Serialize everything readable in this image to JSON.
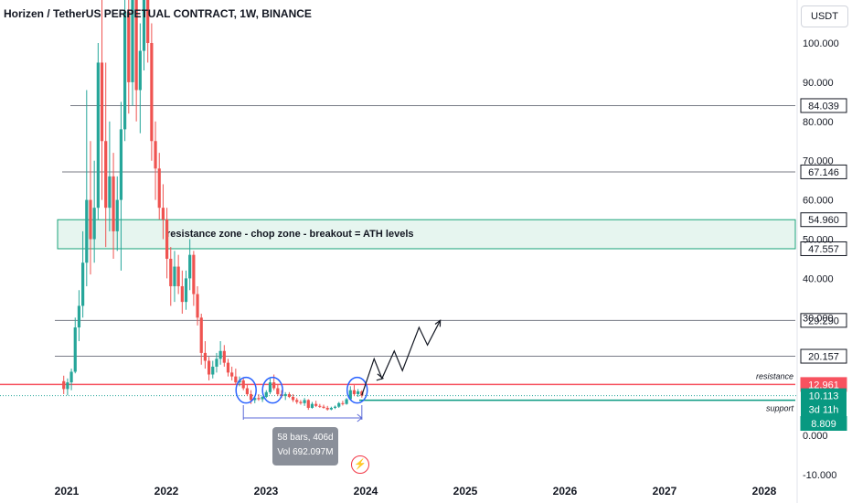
{
  "header": {
    "title": "Horizen / TetherUS PERPETUAL CONTRACT, 1W, BINANCE",
    "currency_button": "USDT"
  },
  "annotation": {
    "zone_text": "resistance zone - chop zone - breakout = ATH levels",
    "resistance_label": "resistance",
    "support_label": "support"
  },
  "measure": {
    "line1": "58 bars, 406d",
    "line2": "Vol 692.097M"
  },
  "colors": {
    "up": "#26a69a",
    "down": "#ef5350",
    "resistance": "#f7525f",
    "support": "#089981",
    "zone": "#1aa37a",
    "level": "#787b86",
    "path": "#131722",
    "circle": "#2962ff"
  },
  "chart_data": {
    "type": "candlestick",
    "symbol": "Horizen / TetherUS PERPETUAL CONTRACT",
    "interval": "1W",
    "exchange": "BINANCE",
    "x_ticks": [
      "2021",
      "2022",
      "2023",
      "2024",
      "2025",
      "2026",
      "2027",
      "2028"
    ],
    "y_ticks": [
      "100.000",
      "90.000",
      "80.000",
      "70.000",
      "60.000",
      "50.000",
      "40.000",
      "30.000",
      "0.000",
      "-10.000"
    ],
    "ylim": [
      -10,
      115
    ],
    "levels": [
      {
        "value": 84.039,
        "label": "84.039",
        "kind": "horizontal"
      },
      {
        "value": 67.146,
        "label": "67.146",
        "kind": "horizontal"
      },
      {
        "value": 54.96,
        "label": "54.960",
        "kind": "zone-top"
      },
      {
        "value": 47.557,
        "label": "47.557",
        "kind": "zone-bottom"
      },
      {
        "value": 29.29,
        "label": "29.290",
        "kind": "horizontal"
      },
      {
        "value": 20.157,
        "label": "20.157",
        "kind": "horizontal"
      },
      {
        "value": 12.961,
        "label": "12.961",
        "kind": "resistance"
      },
      {
        "value": 8.809,
        "label": "8.809",
        "kind": "support"
      }
    ],
    "last_price": {
      "value": 10.113,
      "label": "10.113",
      "countdown": "3d 11h"
    },
    "top_level": 113.5,
    "projection_path": [
      [
        "2023-12-18",
        10.2
      ],
      [
        "2024-02-01",
        19.5
      ],
      [
        "2024-03-01",
        14.5
      ],
      [
        "2024-04-15",
        21.5
      ],
      [
        "2024-05-15",
        16.5
      ],
      [
        "2024-07-15",
        27.5
      ],
      [
        "2024-08-15",
        23.0
      ],
      [
        "2024-10-01",
        29.3
      ]
    ],
    "highlight_circles": [
      "2022-10-20",
      "2023-01-25",
      "2023-12-01"
    ],
    "candles": [
      {
        "t": "2020-12-21",
        "o": 13.8,
        "h": 15.2,
        "l": 10.5,
        "c": 11.8
      },
      {
        "t": "2021-01-04",
        "o": 11.8,
        "h": 14.5,
        "l": 10.2,
        "c": 13.5
      },
      {
        "t": "2021-01-18",
        "o": 13.5,
        "h": 17.0,
        "l": 11.5,
        "c": 16.2
      },
      {
        "t": "2021-02-01",
        "o": 16.2,
        "h": 30.0,
        "l": 15.8,
        "c": 27.5
      },
      {
        "t": "2021-02-15",
        "o": 27.5,
        "h": 37.0,
        "l": 24.0,
        "c": 33.0
      },
      {
        "t": "2021-03-01",
        "o": 33.0,
        "h": 52.0,
        "l": 30.0,
        "c": 44.0
      },
      {
        "t": "2021-03-15",
        "o": 44.0,
        "h": 88.0,
        "l": 38.0,
        "c": 60.0
      },
      {
        "t": "2021-03-29",
        "o": 60.0,
        "h": 75.0,
        "l": 41.0,
        "c": 50.0
      },
      {
        "t": "2021-04-12",
        "o": 50.0,
        "h": 70.0,
        "l": 44.0,
        "c": 58.0
      },
      {
        "t": "2021-04-26",
        "o": 58.0,
        "h": 100.0,
        "l": 55.0,
        "c": 95.0
      },
      {
        "t": "2021-05-10",
        "o": 95.0,
        "h": 120.0,
        "l": 60.0,
        "c": 75.0
      },
      {
        "t": "2021-05-24",
        "o": 75.0,
        "h": 95.0,
        "l": 48.0,
        "c": 58.0
      },
      {
        "t": "2021-06-07",
        "o": 58.0,
        "h": 80.0,
        "l": 52.0,
        "c": 66.0
      },
      {
        "t": "2021-06-21",
        "o": 66.0,
        "h": 72.0,
        "l": 45.0,
        "c": 52.0
      },
      {
        "t": "2021-07-05",
        "o": 52.0,
        "h": 66.0,
        "l": 47.0,
        "c": 60.0
      },
      {
        "t": "2021-07-19",
        "o": 60.0,
        "h": 85.0,
        "l": 42.0,
        "c": 78.0
      },
      {
        "t": "2021-08-02",
        "o": 78.0,
        "h": 120.0,
        "l": 75.0,
        "c": 108.0
      },
      {
        "t": "2021-08-16",
        "o": 108.0,
        "h": 125.0,
        "l": 82.0,
        "c": 90.0
      },
      {
        "t": "2021-08-30",
        "o": 90.0,
        "h": 120.0,
        "l": 84.0,
        "c": 116.0
      },
      {
        "t": "2021-09-13",
        "o": 116.0,
        "h": 125.0,
        "l": 80.0,
        "c": 88.0
      },
      {
        "t": "2021-09-27",
        "o": 88.0,
        "h": 105.0,
        "l": 77.0,
        "c": 98.0
      },
      {
        "t": "2021-10-11",
        "o": 98.0,
        "h": 125.0,
        "l": 93.0,
        "c": 118.0
      },
      {
        "t": "2021-10-25",
        "o": 118.0,
        "h": 125.0,
        "l": 95.0,
        "c": 100.0
      },
      {
        "t": "2021-11-08",
        "o": 100.0,
        "h": 105.0,
        "l": 70.0,
        "c": 75.0
      },
      {
        "t": "2021-11-22",
        "o": 75.0,
        "h": 80.0,
        "l": 60.0,
        "c": 68.0
      },
      {
        "t": "2021-12-06",
        "o": 68.0,
        "h": 72.0,
        "l": 55.0,
        "c": 58.0
      },
      {
        "t": "2021-12-20",
        "o": 58.0,
        "h": 64.0,
        "l": 50.0,
        "c": 55.0
      },
      {
        "t": "2022-01-03",
        "o": 55.0,
        "h": 58.0,
        "l": 40.0,
        "c": 45.0
      },
      {
        "t": "2022-01-17",
        "o": 45.0,
        "h": 48.0,
        "l": 33.0,
        "c": 38.0
      },
      {
        "t": "2022-01-31",
        "o": 38.0,
        "h": 47.0,
        "l": 34.0,
        "c": 43.0
      },
      {
        "t": "2022-02-14",
        "o": 43.0,
        "h": 46.0,
        "l": 36.0,
        "c": 38.0
      },
      {
        "t": "2022-02-28",
        "o": 38.0,
        "h": 42.0,
        "l": 31.0,
        "c": 34.0
      },
      {
        "t": "2022-03-14",
        "o": 34.0,
        "h": 42.0,
        "l": 32.0,
        "c": 40.0
      },
      {
        "t": "2022-03-28",
        "o": 40.0,
        "h": 50.0,
        "l": 37.0,
        "c": 46.0
      },
      {
        "t": "2022-04-11",
        "o": 46.0,
        "h": 47.0,
        "l": 33.0,
        "c": 36.0
      },
      {
        "t": "2022-04-25",
        "o": 36.0,
        "h": 38.0,
        "l": 28.0,
        "c": 30.0
      },
      {
        "t": "2022-05-09",
        "o": 30.0,
        "h": 31.0,
        "l": 18.0,
        "c": 21.0
      },
      {
        "t": "2022-05-23",
        "o": 21.0,
        "h": 24.0,
        "l": 17.0,
        "c": 19.0
      },
      {
        "t": "2022-06-06",
        "o": 19.0,
        "h": 20.0,
        "l": 14.0,
        "c": 15.5
      },
      {
        "t": "2022-06-20",
        "o": 15.5,
        "h": 19.0,
        "l": 14.5,
        "c": 17.5
      },
      {
        "t": "2022-07-04",
        "o": 17.5,
        "h": 21.0,
        "l": 16.0,
        "c": 19.5
      },
      {
        "t": "2022-07-18",
        "o": 19.5,
        "h": 24.0,
        "l": 18.0,
        "c": 21.5
      },
      {
        "t": "2022-08-01",
        "o": 21.5,
        "h": 23.0,
        "l": 17.5,
        "c": 18.5
      },
      {
        "t": "2022-08-15",
        "o": 18.5,
        "h": 19.5,
        "l": 15.0,
        "c": 16.0
      },
      {
        "t": "2022-08-29",
        "o": 16.0,
        "h": 17.5,
        "l": 14.0,
        "c": 15.0
      },
      {
        "t": "2022-09-12",
        "o": 15.0,
        "h": 17.0,
        "l": 13.0,
        "c": 13.5
      },
      {
        "t": "2022-09-26",
        "o": 13.5,
        "h": 15.0,
        "l": 12.5,
        "c": 14.0
      },
      {
        "t": "2022-10-10",
        "o": 14.0,
        "h": 14.5,
        "l": 11.5,
        "c": 12.0
      },
      {
        "t": "2022-10-24",
        "o": 12.0,
        "h": 13.0,
        "l": 10.0,
        "c": 10.5
      },
      {
        "t": "2022-11-07",
        "o": 10.5,
        "h": 11.5,
        "l": 8.0,
        "c": 9.0
      },
      {
        "t": "2022-11-21",
        "o": 9.0,
        "h": 10.0,
        "l": 8.2,
        "c": 9.5
      },
      {
        "t": "2022-12-05",
        "o": 9.5,
        "h": 10.5,
        "l": 8.8,
        "c": 9.2
      },
      {
        "t": "2022-12-19",
        "o": 9.2,
        "h": 10.0,
        "l": 8.5,
        "c": 9.8
      },
      {
        "t": "2023-01-02",
        "o": 9.8,
        "h": 11.5,
        "l": 9.5,
        "c": 11.0
      },
      {
        "t": "2023-01-16",
        "o": 11.0,
        "h": 14.5,
        "l": 10.5,
        "c": 13.5
      },
      {
        "t": "2023-01-30",
        "o": 13.5,
        "h": 15.5,
        "l": 11.5,
        "c": 12.0
      },
      {
        "t": "2023-02-13",
        "o": 12.0,
        "h": 13.0,
        "l": 10.0,
        "c": 10.5
      },
      {
        "t": "2023-02-27",
        "o": 10.5,
        "h": 11.5,
        "l": 9.5,
        "c": 10.0
      },
      {
        "t": "2023-03-13",
        "o": 10.0,
        "h": 11.0,
        "l": 9.0,
        "c": 10.5
      },
      {
        "t": "2023-03-27",
        "o": 10.5,
        "h": 11.0,
        "l": 9.5,
        "c": 9.8
      },
      {
        "t": "2023-04-10",
        "o": 9.8,
        "h": 10.5,
        "l": 8.5,
        "c": 9.0
      },
      {
        "t": "2023-04-24",
        "o": 9.0,
        "h": 9.5,
        "l": 8.0,
        "c": 8.5
      },
      {
        "t": "2023-05-08",
        "o": 8.5,
        "h": 9.0,
        "l": 7.8,
        "c": 8.2
      },
      {
        "t": "2023-05-22",
        "o": 8.2,
        "h": 9.5,
        "l": 7.5,
        "c": 9.0
      },
      {
        "t": "2023-06-05",
        "o": 9.0,
        "h": 9.2,
        "l": 6.5,
        "c": 7.0
      },
      {
        "t": "2023-06-19",
        "o": 7.0,
        "h": 8.5,
        "l": 6.8,
        "c": 8.0
      },
      {
        "t": "2023-07-03",
        "o": 8.0,
        "h": 8.8,
        "l": 7.2,
        "c": 7.5
      },
      {
        "t": "2023-07-17",
        "o": 7.5,
        "h": 8.0,
        "l": 7.0,
        "c": 7.3
      },
      {
        "t": "2023-07-31",
        "o": 7.3,
        "h": 7.8,
        "l": 6.8,
        "c": 7.0
      },
      {
        "t": "2023-08-14",
        "o": 7.0,
        "h": 7.5,
        "l": 6.3,
        "c": 6.6
      },
      {
        "t": "2023-08-28",
        "o": 6.6,
        "h": 7.3,
        "l": 6.4,
        "c": 7.0
      },
      {
        "t": "2023-09-11",
        "o": 7.0,
        "h": 7.6,
        "l": 6.7,
        "c": 7.3
      },
      {
        "t": "2023-09-25",
        "o": 7.3,
        "h": 8.5,
        "l": 7.0,
        "c": 8.2
      },
      {
        "t": "2023-10-09",
        "o": 8.2,
        "h": 8.8,
        "l": 7.6,
        "c": 8.0
      },
      {
        "t": "2023-10-23",
        "o": 8.0,
        "h": 9.5,
        "l": 7.8,
        "c": 9.2
      },
      {
        "t": "2023-11-06",
        "o": 9.2,
        "h": 12.5,
        "l": 9.0,
        "c": 11.5
      },
      {
        "t": "2023-11-20",
        "o": 11.5,
        "h": 12.8,
        "l": 10.0,
        "c": 10.5
      },
      {
        "t": "2023-12-04",
        "o": 10.5,
        "h": 11.8,
        "l": 9.8,
        "c": 11.2
      },
      {
        "t": "2023-12-18",
        "o": 11.2,
        "h": 11.5,
        "l": 9.6,
        "c": 10.113
      }
    ]
  }
}
